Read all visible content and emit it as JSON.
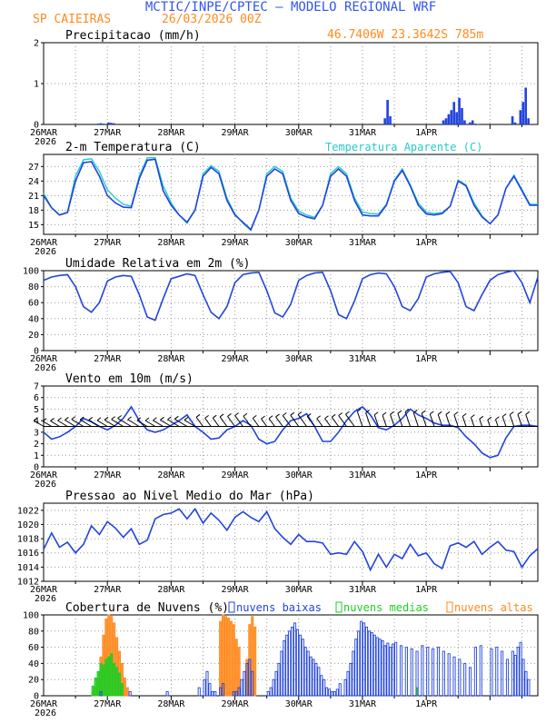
{
  "header": {
    "title": "MCTIC/INPE/CPTEC — MODELO REGIONAL WRF",
    "station": "SP CAIEIRAS",
    "run": "26/03/2026 00Z",
    "coords": "46.7406W 23.3642S 785m"
  },
  "colors": {
    "title": "#3355ee",
    "orange": "#ff8a1e",
    "blue": "#2244dd",
    "cyan": "#22cccc",
    "green": "#22cc22",
    "grid": "#999999"
  },
  "chart_data": [
    {
      "type": "bar",
      "id": "precip",
      "title": "Precipitacao (mm/h)",
      "ylim": [
        0,
        2
      ],
      "yticks": [
        "2",
        "1",
        "0"
      ],
      "day_labels": [
        "26MAR",
        "27MAR",
        "28MAR",
        "29MAR",
        "30MAR",
        "31MAR",
        "1APR"
      ],
      "year_label": "2026",
      "x_hours": [
        20,
        21,
        22,
        24,
        25,
        26,
        128,
        129,
        130,
        150,
        151,
        152,
        153,
        154,
        155,
        156,
        157,
        158,
        160,
        161,
        162,
        163,
        176,
        177,
        179,
        180,
        181,
        182
      ],
      "values": [
        0.02,
        0.03,
        0.02,
        0.05,
        0.04,
        0.03,
        0.15,
        0.6,
        0.2,
        0.1,
        0.15,
        0.25,
        0.35,
        0.55,
        0.3,
        0.65,
        0.4,
        0.1,
        0.05,
        0.1,
        0.02,
        0.01,
        0.2,
        0.05,
        0.35,
        0.55,
        0.9,
        0.15
      ]
    },
    {
      "type": "line",
      "id": "temp",
      "title": "2-m Temperatura (C)",
      "legend": "Temperatura Aparente (C)",
      "ylim": [
        13,
        29.5
      ],
      "yticks": [
        "27",
        "24",
        "21",
        "18",
        "15"
      ],
      "day_labels": [
        "26MAR",
        "27MAR",
        "28MAR",
        "29MAR",
        "30MAR",
        "31MAR",
        "1APR"
      ],
      "year_label": "2026",
      "series": [
        {
          "name": "Temperatura",
          "x": [
            0,
            3,
            6,
            9,
            12,
            15,
            18,
            21,
            24,
            27,
            30,
            33,
            36,
            39,
            42,
            45,
            48,
            51,
            54,
            57,
            60,
            63,
            66,
            69,
            72,
            75,
            78,
            81,
            84,
            87,
            90,
            93,
            96,
            99,
            102,
            105,
            108,
            111,
            114,
            117,
            120,
            123,
            126,
            129,
            132,
            135,
            138,
            141,
            144,
            147,
            150,
            153,
            156,
            159,
            162,
            165,
            168,
            171,
            174,
            177,
            180,
            183,
            186
          ],
          "y": [
            21,
            18.5,
            17,
            17.5,
            24,
            27.8,
            28,
            25,
            21,
            19.5,
            18.6,
            18.5,
            24.5,
            28.3,
            28.5,
            22,
            19,
            17,
            15.5,
            18,
            25,
            26.8,
            25.5,
            20,
            17,
            15.5,
            14,
            18,
            25,
            26.5,
            25.5,
            20,
            17.3,
            16.6,
            16.2,
            19,
            25,
            26.5,
            25,
            20,
            17,
            16.8,
            16.8,
            19,
            24,
            26.2,
            23,
            19,
            17.2,
            17,
            17.3,
            18.8,
            24,
            23,
            19,
            16.6,
            15.2,
            17,
            22.5,
            25,
            22,
            19,
            19
          ]
        },
        {
          "name": "Temperatura Aparente",
          "x": [
            0,
            3,
            6,
            9,
            12,
            15,
            18,
            21,
            24,
            27,
            30,
            33,
            36,
            39,
            42,
            45,
            48,
            51,
            54,
            57,
            60,
            63,
            66,
            69,
            72,
            75,
            78,
            81,
            84,
            87,
            90,
            93,
            96,
            99,
            102,
            105,
            108,
            111,
            114,
            117,
            120,
            123,
            126,
            129,
            132,
            135,
            138,
            141,
            144,
            147,
            150,
            153,
            156,
            159,
            162,
            165,
            168,
            171,
            174,
            177,
            180,
            183,
            186
          ],
          "y": [
            21.5,
            18.5,
            17,
            17.6,
            25,
            28.4,
            28.6,
            26,
            22.2,
            20.5,
            19.2,
            18.8,
            25,
            28.8,
            28.8,
            23,
            19.5,
            17,
            15.3,
            18,
            25.5,
            27.2,
            26,
            20.5,
            17.2,
            15.3,
            13.8,
            18,
            25.5,
            27,
            26,
            20.5,
            17.8,
            17,
            16.5,
            19,
            25.5,
            27,
            25.5,
            20.5,
            17.6,
            17.3,
            17.2,
            19.2,
            24.2,
            26.5,
            23.2,
            19.5,
            17.6,
            17.3,
            17.5,
            18.8,
            24.2,
            23.2,
            19.5,
            16.8,
            15.2,
            17,
            22.5,
            25.2,
            22.3,
            19.2,
            19.2
          ]
        }
      ]
    },
    {
      "type": "line",
      "id": "rh",
      "title": "Umidade Relativa em 2m (%)",
      "ylim": [
        0,
        100
      ],
      "yticks": [
        "100",
        "80",
        "60",
        "40",
        "20",
        "0"
      ],
      "day_labels": [
        "26MAR",
        "27MAR",
        "28MAR",
        "29MAR",
        "30MAR",
        "31MAR",
        "1APR"
      ],
      "year_label": "2026",
      "series": [
        {
          "name": "Umidade",
          "x": [
            0,
            3,
            6,
            9,
            12,
            15,
            18,
            21,
            24,
            27,
            30,
            33,
            36,
            39,
            42,
            45,
            48,
            51,
            54,
            57,
            60,
            63,
            66,
            69,
            72,
            75,
            78,
            81,
            84,
            87,
            90,
            93,
            96,
            99,
            102,
            105,
            108,
            111,
            114,
            117,
            120,
            123,
            126,
            129,
            132,
            135,
            138,
            141,
            144,
            147,
            150,
            153,
            156,
            159,
            162,
            165,
            168,
            171,
            174,
            177,
            180,
            183,
            186
          ],
          "y": [
            88,
            92,
            94,
            95,
            80,
            55,
            48,
            60,
            87,
            92,
            94,
            93,
            70,
            42,
            38,
            65,
            90,
            93,
            96,
            94,
            70,
            48,
            40,
            55,
            85,
            95,
            97,
            98,
            75,
            47,
            42,
            58,
            88,
            94,
            97,
            98,
            75,
            45,
            40,
            62,
            90,
            95,
            97,
            96,
            80,
            55,
            50,
            65,
            92,
            96,
            98,
            99,
            85,
            55,
            50,
            70,
            88,
            95,
            98,
            100,
            85,
            60,
            92
          ]
        }
      ]
    },
    {
      "type": "line",
      "id": "wind",
      "title": "Vento em 10m (m/s)",
      "ylim": [
        0,
        7
      ],
      "yticks": [
        "7",
        "6",
        "5",
        "4",
        "3",
        "2",
        "1",
        "0"
      ],
      "day_labels": [
        "26MAR",
        "27MAR",
        "28MAR",
        "29MAR",
        "30MAR",
        "31MAR",
        "1APR"
      ],
      "year_label": "2026",
      "series": [
        {
          "name": "Vento",
          "x": [
            0,
            3,
            6,
            9,
            12,
            15,
            18,
            21,
            24,
            27,
            30,
            33,
            36,
            39,
            42,
            45,
            48,
            51,
            54,
            57,
            60,
            63,
            66,
            69,
            72,
            75,
            78,
            81,
            84,
            87,
            90,
            93,
            96,
            99,
            102,
            105,
            108,
            111,
            114,
            117,
            120,
            123,
            126,
            129,
            132,
            135,
            138,
            141,
            144,
            147,
            150,
            153,
            156,
            159,
            162,
            165,
            168,
            171,
            174,
            177,
            180,
            183,
            186
          ],
          "y": [
            3,
            2.4,
            2.6,
            3,
            3.5,
            4.2,
            3.9,
            3.5,
            3.2,
            3.6,
            4.2,
            5.2,
            4.0,
            3.2,
            3.0,
            3.2,
            3.6,
            4.0,
            4.5,
            3.5,
            3.0,
            2.4,
            2.5,
            3.2,
            3.5,
            4.0,
            3.6,
            2.4,
            2.0,
            2.2,
            3.2,
            4.0,
            4.2,
            4.6,
            3.5,
            2.2,
            2.2,
            3.0,
            4.0,
            4.8,
            5.2,
            4.5,
            3.4,
            3.2,
            3.6,
            4.2,
            5.0,
            4.5,
            4.2,
            3.8,
            3.6,
            3.6,
            3.4,
            2.6,
            2.0,
            1.2,
            0.8,
            1.0,
            2.5,
            3.5,
            3.6,
            3.6,
            3.5
          ]
        }
      ]
    },
    {
      "type": "line",
      "id": "press",
      "title": "Pressao ao Nivel Medio do Mar (hPa)",
      "ylim": [
        1012,
        1023
      ],
      "yticks": [
        "1022",
        "1020",
        "1018",
        "1016",
        "1014",
        "1012"
      ],
      "day_labels": [
        "26MAR",
        "27MAR",
        "28MAR",
        "29MAR",
        "30MAR",
        "31MAR",
        "1APR"
      ],
      "year_label": "2026",
      "series": [
        {
          "name": "Pressao",
          "x": [
            0,
            3,
            6,
            9,
            12,
            15,
            18,
            21,
            24,
            27,
            30,
            33,
            36,
            39,
            42,
            45,
            48,
            51,
            54,
            57,
            60,
            63,
            66,
            69,
            72,
            75,
            78,
            81,
            84,
            87,
            90,
            93,
            96,
            99,
            102,
            105,
            108,
            111,
            114,
            117,
            120,
            123,
            126,
            129,
            132,
            135,
            138,
            141,
            144,
            147,
            150,
            153,
            156,
            159,
            162,
            165,
            168,
            171,
            174,
            177,
            180,
            183,
            186
          ],
          "y": [
            1016.5,
            1018.8,
            1016.8,
            1017.5,
            1016,
            1017.2,
            1019.8,
            1018.6,
            1020.4,
            1019.5,
            1018.2,
            1019.4,
            1017.2,
            1017.8,
            1020.8,
            1021.4,
            1021.6,
            1022.2,
            1020.8,
            1022.2,
            1020.2,
            1021.6,
            1020.6,
            1019.2,
            1021,
            1021.8,
            1021,
            1020.4,
            1021.8,
            1019.4,
            1018.2,
            1017.2,
            1018.6,
            1017.6,
            1017.6,
            1017.4,
            1015.8,
            1016,
            1015.8,
            1017.6,
            1016.2,
            1013.6,
            1015.8,
            1014,
            1015.8,
            1015.2,
            1017.2,
            1015.6,
            1016,
            1014.5,
            1013.8,
            1017,
            1017.4,
            1016.8,
            1017.6,
            1015.8,
            1016.8,
            1017.6,
            1016.4,
            1016.2,
            1014,
            1015.6,
            1016.6
          ]
        }
      ]
    },
    {
      "type": "bar",
      "id": "clouds",
      "title": "Cobertura de Nuvens (%)",
      "ylim": [
        0,
        100
      ],
      "yticks": [
        "100",
        "80",
        "60",
        "40",
        "20",
        "0"
      ],
      "day_labels": [
        "26MAR",
        "27MAR",
        "28MAR",
        "29MAR",
        "30MAR",
        "31MAR",
        "1APR"
      ],
      "year_label": "2026",
      "legend": [
        "nuvens baixas",
        "nuvens medias",
        "nuvens altas"
      ],
      "series": [
        {
          "name": "nuvens baixas",
          "x": [
            21,
            32,
            46,
            58,
            60,
            61,
            62,
            63,
            64,
            66,
            67,
            71,
            72,
            73,
            74,
            75,
            76,
            77,
            78,
            84,
            85,
            86,
            87,
            88,
            89,
            90,
            91,
            92,
            93,
            94,
            95,
            96,
            97,
            98,
            99,
            100,
            101,
            102,
            103,
            104,
            105,
            106,
            107,
            108,
            109,
            110,
            111,
            113,
            114,
            115,
            116,
            117,
            118,
            119,
            120,
            121,
            122,
            123,
            124,
            125,
            126,
            127,
            128,
            129,
            130,
            131,
            132,
            134,
            136,
            138,
            140,
            142,
            144,
            146,
            148,
            150,
            152,
            154,
            156,
            158,
            160,
            162,
            164,
            168,
            170,
            172,
            174,
            176,
            177,
            178,
            179,
            180,
            181,
            182
          ],
          "y": [
            5,
            5,
            5,
            10,
            20,
            30,
            15,
            5,
            5,
            10,
            15,
            5,
            5,
            10,
            20,
            30,
            40,
            45,
            30,
            5,
            10,
            20,
            30,
            40,
            55,
            68,
            75,
            80,
            85,
            90,
            82,
            75,
            70,
            60,
            55,
            48,
            45,
            40,
            35,
            25,
            20,
            10,
            8,
            5,
            5,
            8,
            15,
            20,
            30,
            40,
            55,
            70,
            80,
            92,
            90,
            85,
            80,
            78,
            75,
            72,
            70,
            68,
            62,
            65,
            60,
            64,
            66,
            62,
            60,
            58,
            55,
            62,
            60,
            58,
            60,
            55,
            52,
            48,
            45,
            40,
            35,
            60,
            62,
            58,
            60,
            55,
            45,
            55,
            50,
            60,
            66,
            45,
            30,
            20
          ]
        },
        {
          "name": "nuvens medias",
          "x": [
            18,
            19,
            20,
            21,
            22,
            23,
            24,
            25,
            26,
            27,
            28,
            29,
            140
          ],
          "y": [
            12,
            22,
            30,
            40,
            38,
            45,
            48,
            52,
            40,
            35,
            28,
            15,
            10
          ]
        },
        {
          "name": "nuvens altas",
          "x": [
            18,
            19,
            20,
            21,
            22,
            23,
            24,
            25,
            26,
            27,
            28,
            29,
            30,
            31,
            66,
            67,
            68,
            69,
            70,
            71,
            72,
            73,
            76,
            77,
            78,
            79
          ],
          "y": [
            5,
            10,
            20,
            48,
            75,
            95,
            100,
            98,
            90,
            72,
            55,
            40,
            22,
            10,
            92,
            100,
            98,
            96,
            92,
            88,
            70,
            60,
            45,
            88,
            98,
            85
          ]
        }
      ]
    }
  ]
}
